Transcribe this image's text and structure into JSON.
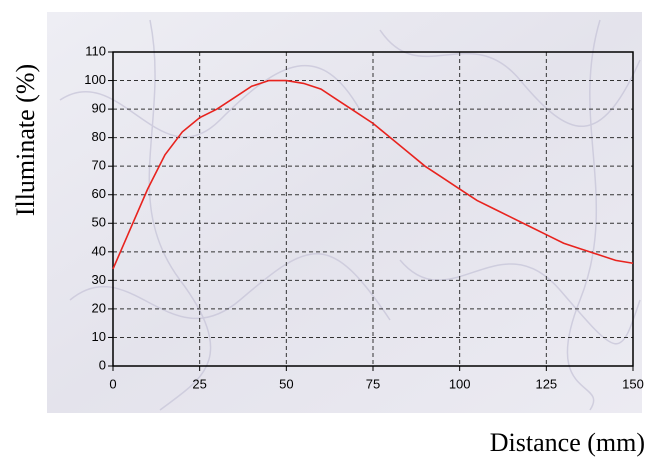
{
  "chart_data": {
    "type": "line",
    "x_label": "Distance (mm)",
    "y_label": "Illuminate (%)",
    "x": [
      0,
      5,
      10,
      15,
      20,
      25,
      30,
      35,
      40,
      45,
      50,
      55,
      60,
      65,
      70,
      75,
      80,
      85,
      90,
      95,
      100,
      105,
      110,
      115,
      120,
      125,
      130,
      135,
      140,
      145,
      150
    ],
    "series": [
      {
        "name": "Illuminate",
        "color": "#e8231e",
        "values": [
          34,
          48,
          62,
          74,
          82,
          87,
          90,
          94,
          98,
          100,
          100,
          99,
          97,
          93,
          89,
          85,
          80,
          75,
          70,
          66,
          62,
          58,
          55,
          52,
          49,
          46,
          43,
          41,
          39,
          37,
          36
        ]
      }
    ],
    "xlim": [
      0,
      150
    ],
    "xticks": [
      0,
      25,
      50,
      75,
      100,
      125,
      150
    ],
    "ylim": [
      0,
      110
    ],
    "yticks": [
      0,
      10,
      20,
      30,
      40,
      50,
      60,
      70,
      80,
      90,
      100,
      110
    ],
    "grid": true
  }
}
